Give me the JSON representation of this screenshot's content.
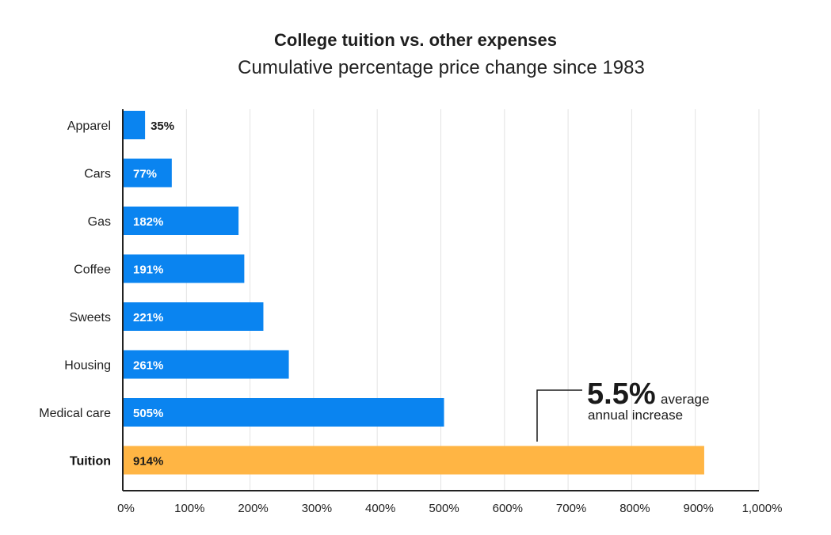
{
  "chart_data": {
    "type": "bar",
    "orientation": "horizontal",
    "title": "College tuition vs. other expenses",
    "subtitle": "Cumulative percentage price change since 1983",
    "categories": [
      "Apparel",
      "Cars",
      "Gas",
      "Coffee",
      "Sweets",
      "Housing",
      "Medical care",
      "Tuition"
    ],
    "values": [
      35,
      77,
      182,
      191,
      221,
      261,
      505,
      914
    ],
    "data_labels": [
      "35%",
      "77%",
      "182%",
      "191%",
      "221%",
      "261%",
      "505%",
      "914%"
    ],
    "highlight_category": "Tuition",
    "xlim": [
      0,
      1000
    ],
    "x_ticks": [
      "0%",
      "100%",
      "200%",
      "300%",
      "400%",
      "500%",
      "600%",
      "700%",
      "800%",
      "900%",
      "1,000%"
    ],
    "grid": true,
    "xlabel": "",
    "ylabel": "",
    "colors": {
      "bar": "#0a84f0",
      "highlight": "#ffb544",
      "grid": "#e3e3e3",
      "axis": "#222222"
    },
    "annotation": {
      "value": "5.5%",
      "text1": "average",
      "text2": "annual increase"
    }
  }
}
